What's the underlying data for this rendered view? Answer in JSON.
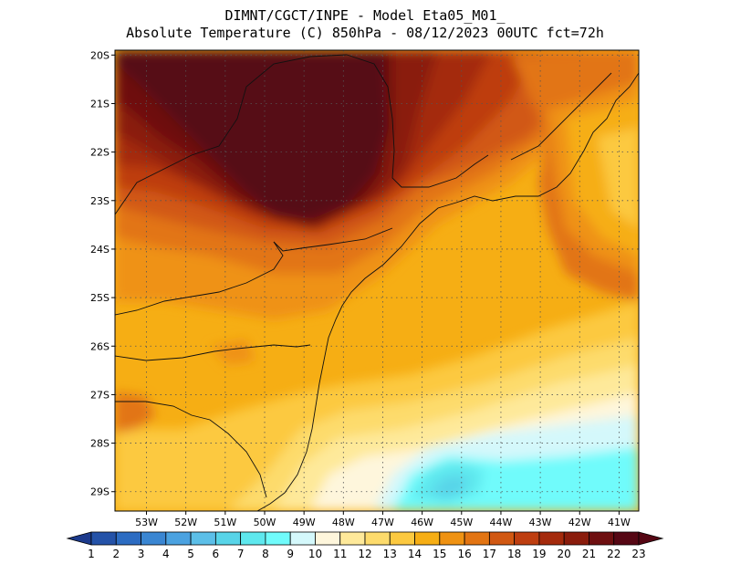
{
  "header": {
    "line1": "DIMNT/CGCT/INPE -  Model Eta05_M01_",
    "line2": "Absolute Temperature (C) 850hPa -  08/12/2023 00UTC fct=72h"
  },
  "map": {
    "lat_labels": [
      "20S",
      "21S",
      "22S",
      "23S",
      "24S",
      "25S",
      "26S",
      "27S",
      "28S",
      "29S"
    ],
    "lon_labels": [
      "53W",
      "52W",
      "51W",
      "50W",
      "49W",
      "48W",
      "47W",
      "46W",
      "45W",
      "44W",
      "43W",
      "42W",
      "41W"
    ],
    "lat_range": [
      -29.4,
      -19.9
    ],
    "lon_range": [
      -53.8,
      -40.5
    ],
    "grid": true,
    "coastlines": true,
    "state_borders": true
  },
  "colorbar": {
    "labels": [
      "1",
      "2",
      "3",
      "4",
      "5",
      "6",
      "7",
      "8",
      "9",
      "10",
      "11",
      "12",
      "13",
      "14",
      "15",
      "16",
      "17",
      "18",
      "19",
      "20",
      "21",
      "22",
      "23"
    ],
    "colors": [
      "#1c3a8c",
      "#2452a8",
      "#2c6cc2",
      "#3a86d2",
      "#4ba2e0",
      "#5cbfe8",
      "#58d4e8",
      "#5ee8ee",
      "#70fbfb",
      "#d4f8fb",
      "#fef6dc",
      "#fee99a",
      "#fddb6c",
      "#fcc940",
      "#f6ae14",
      "#ef9212",
      "#e27412",
      "#d15812",
      "#be3e10",
      "#a42a0c",
      "#8a1c0c",
      "#6e0f10",
      "#560714"
    ]
  }
}
